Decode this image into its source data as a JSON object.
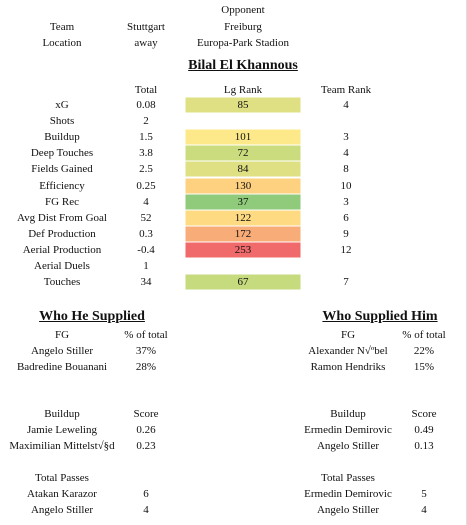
{
  "match": {
    "opponent_label": "Opponent",
    "team_label": "Team",
    "team": "Stuttgart",
    "opponent": "Freiburg",
    "location_label": "Location",
    "location": "away",
    "venue": "Europa-Park Stadion"
  },
  "player": "Bilal El Khannous",
  "stats": {
    "columns": [
      "Total",
      "Lg Rank",
      "Team Rank"
    ],
    "rows": [
      {
        "label": "xG",
        "total": "0.08",
        "lg_rank": "85",
        "team_rank": "4",
        "color": "#dfe083"
      },
      {
        "label": "Shots",
        "total": "2",
        "lg_rank": null,
        "team_rank": null,
        "color": null
      },
      {
        "label": "Buildup",
        "total": "1.5",
        "lg_rank": "101",
        "team_rank": "3",
        "color": "#fde98a"
      },
      {
        "label": "Deep Touches",
        "total": "3.8",
        "lg_rank": "72",
        "team_rank": "4",
        "color": "#cbdc7e"
      },
      {
        "label": "Fields Gained",
        "total": "2.5",
        "lg_rank": "84",
        "team_rank": "8",
        "color": "#dfe083"
      },
      {
        "label": "Efficiency",
        "total": "0.25",
        "lg_rank": "130",
        "team_rank": "10",
        "color": "#fdd17f"
      },
      {
        "label": "FG Rec",
        "total": "4",
        "lg_rank": "37",
        "team_rank": "3",
        "color": "#8fcb7b"
      },
      {
        "label": "Avg Dist From Goal",
        "total": "52",
        "lg_rank": "122",
        "team_rank": "6",
        "color": "#fedb82"
      },
      {
        "label": "Def Production",
        "total": "0.3",
        "lg_rank": "172",
        "team_rank": "9",
        "color": "#f8ac78"
      },
      {
        "label": "Aerial Production",
        "total": "-0.4",
        "lg_rank": "253",
        "team_rank": "12",
        "color": "#f0696b"
      },
      {
        "label": "Aerial Duels",
        "total": "1",
        "lg_rank": null,
        "team_rank": null,
        "color": null
      },
      {
        "label": "Touches",
        "total": "34",
        "lg_rank": "67",
        "team_rank": "7",
        "color": "#c6da7e"
      }
    ]
  },
  "supplied": {
    "title": "Who He Supplied",
    "sections": [
      {
        "headers": [
          "FG",
          "% of total"
        ],
        "rows": [
          [
            "Angelo Stiller",
            "37%"
          ],
          [
            "Badredine Bouanani",
            "28%"
          ]
        ]
      },
      {
        "headers": [
          "Buildup",
          "Score"
        ],
        "rows": [
          [
            "Jamie Leweling",
            "0.26"
          ],
          [
            "Maximilian Mittelst√§d",
            "0.23"
          ]
        ]
      },
      {
        "headers": [
          "Total Passes",
          null
        ],
        "rows": [
          [
            "Atakan Karazor",
            "6"
          ],
          [
            "Angelo Stiller",
            "4"
          ]
        ]
      }
    ]
  },
  "supplied_by": {
    "title": "Who Supplied Him",
    "sections": [
      {
        "headers": [
          "FG",
          "% of total"
        ],
        "rows": [
          [
            "Alexander N√ºbel",
            "22%"
          ],
          [
            "Ramon Hendriks",
            "15%"
          ]
        ]
      },
      {
        "headers": [
          "Buildup",
          "Score"
        ],
        "rows": [
          [
            "Ermedin Demirovic",
            "0.49"
          ],
          [
            "Angelo Stiller",
            "0.13"
          ]
        ]
      },
      {
        "headers": [
          "Total Passes",
          null
        ],
        "rows": [
          [
            "Ermedin Demirovic",
            "5"
          ],
          [
            "Angelo Stiller",
            "4"
          ]
        ]
      }
    ]
  }
}
